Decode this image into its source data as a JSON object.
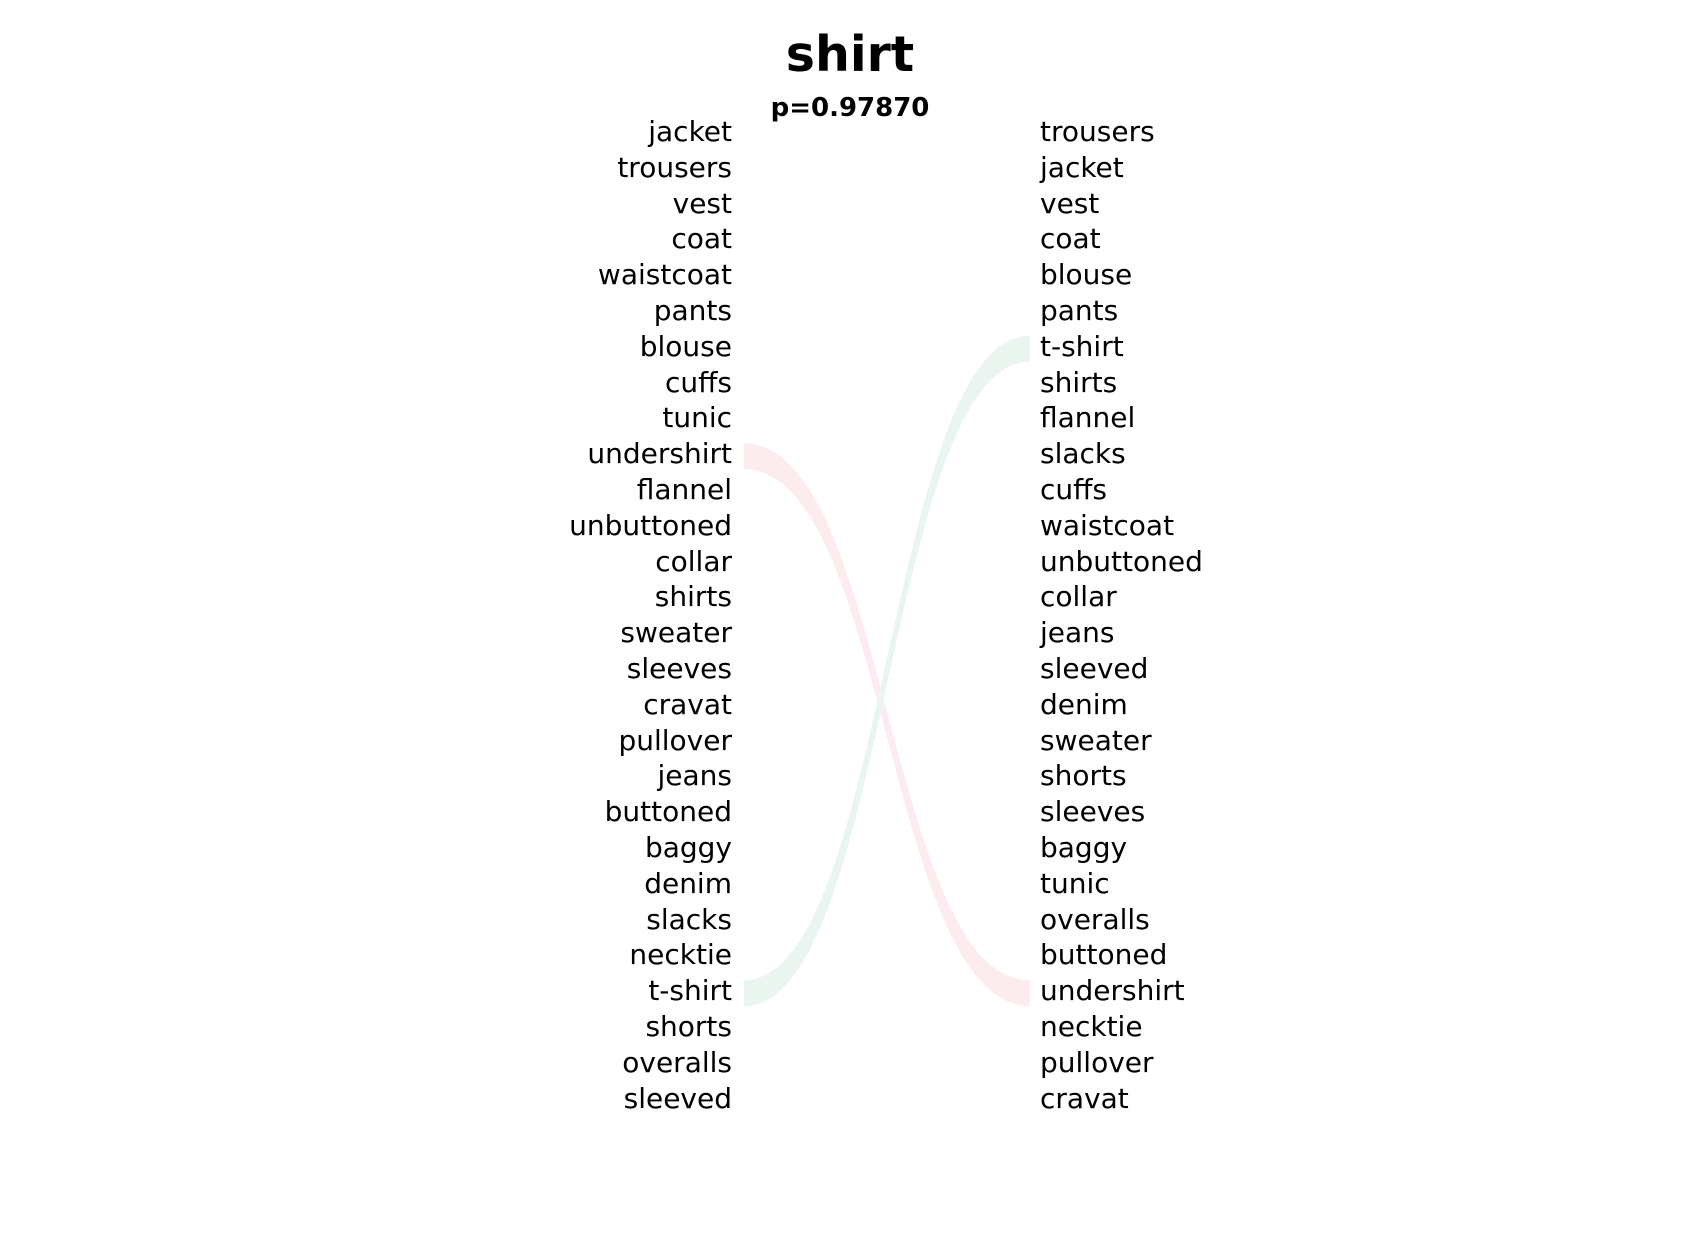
{
  "title": "shirt",
  "subtitle": "p=0.97870",
  "left_words": [
    "jacket",
    "trousers",
    "vest",
    "coat",
    "waistcoat",
    "pants",
    "blouse",
    "cuffs",
    "tunic",
    "undershirt",
    "flannel",
    "unbuttoned",
    "collar",
    "shirts",
    "sweater",
    "sleeves",
    "cravat",
    "pullover",
    "jeans",
    "buttoned",
    "baggy",
    "denim",
    "slacks",
    "necktie",
    "t-shirt",
    "shorts",
    "overalls",
    "sleeved"
  ],
  "right_words": [
    "trousers",
    "jacket",
    "vest",
    "coat",
    "blouse",
    "pants",
    "t-shirt",
    "shirts",
    "flannel",
    "slacks",
    "cuffs",
    "waistcoat",
    "unbuttoned",
    "collar",
    "jeans",
    "sleeved",
    "denim",
    "sweater",
    "shorts",
    "sleeves",
    "baggy",
    "tunic",
    "overalls",
    "buttoned",
    "undershirt",
    "necktie",
    "pullover",
    "cravat"
  ],
  "links": [
    {
      "from": "undershirt",
      "to": "undershirt",
      "color": "#fdecee"
    },
    {
      "from": "t-shirt",
      "to": "t-shirt",
      "color": "#eaf5ef"
    }
  ]
}
